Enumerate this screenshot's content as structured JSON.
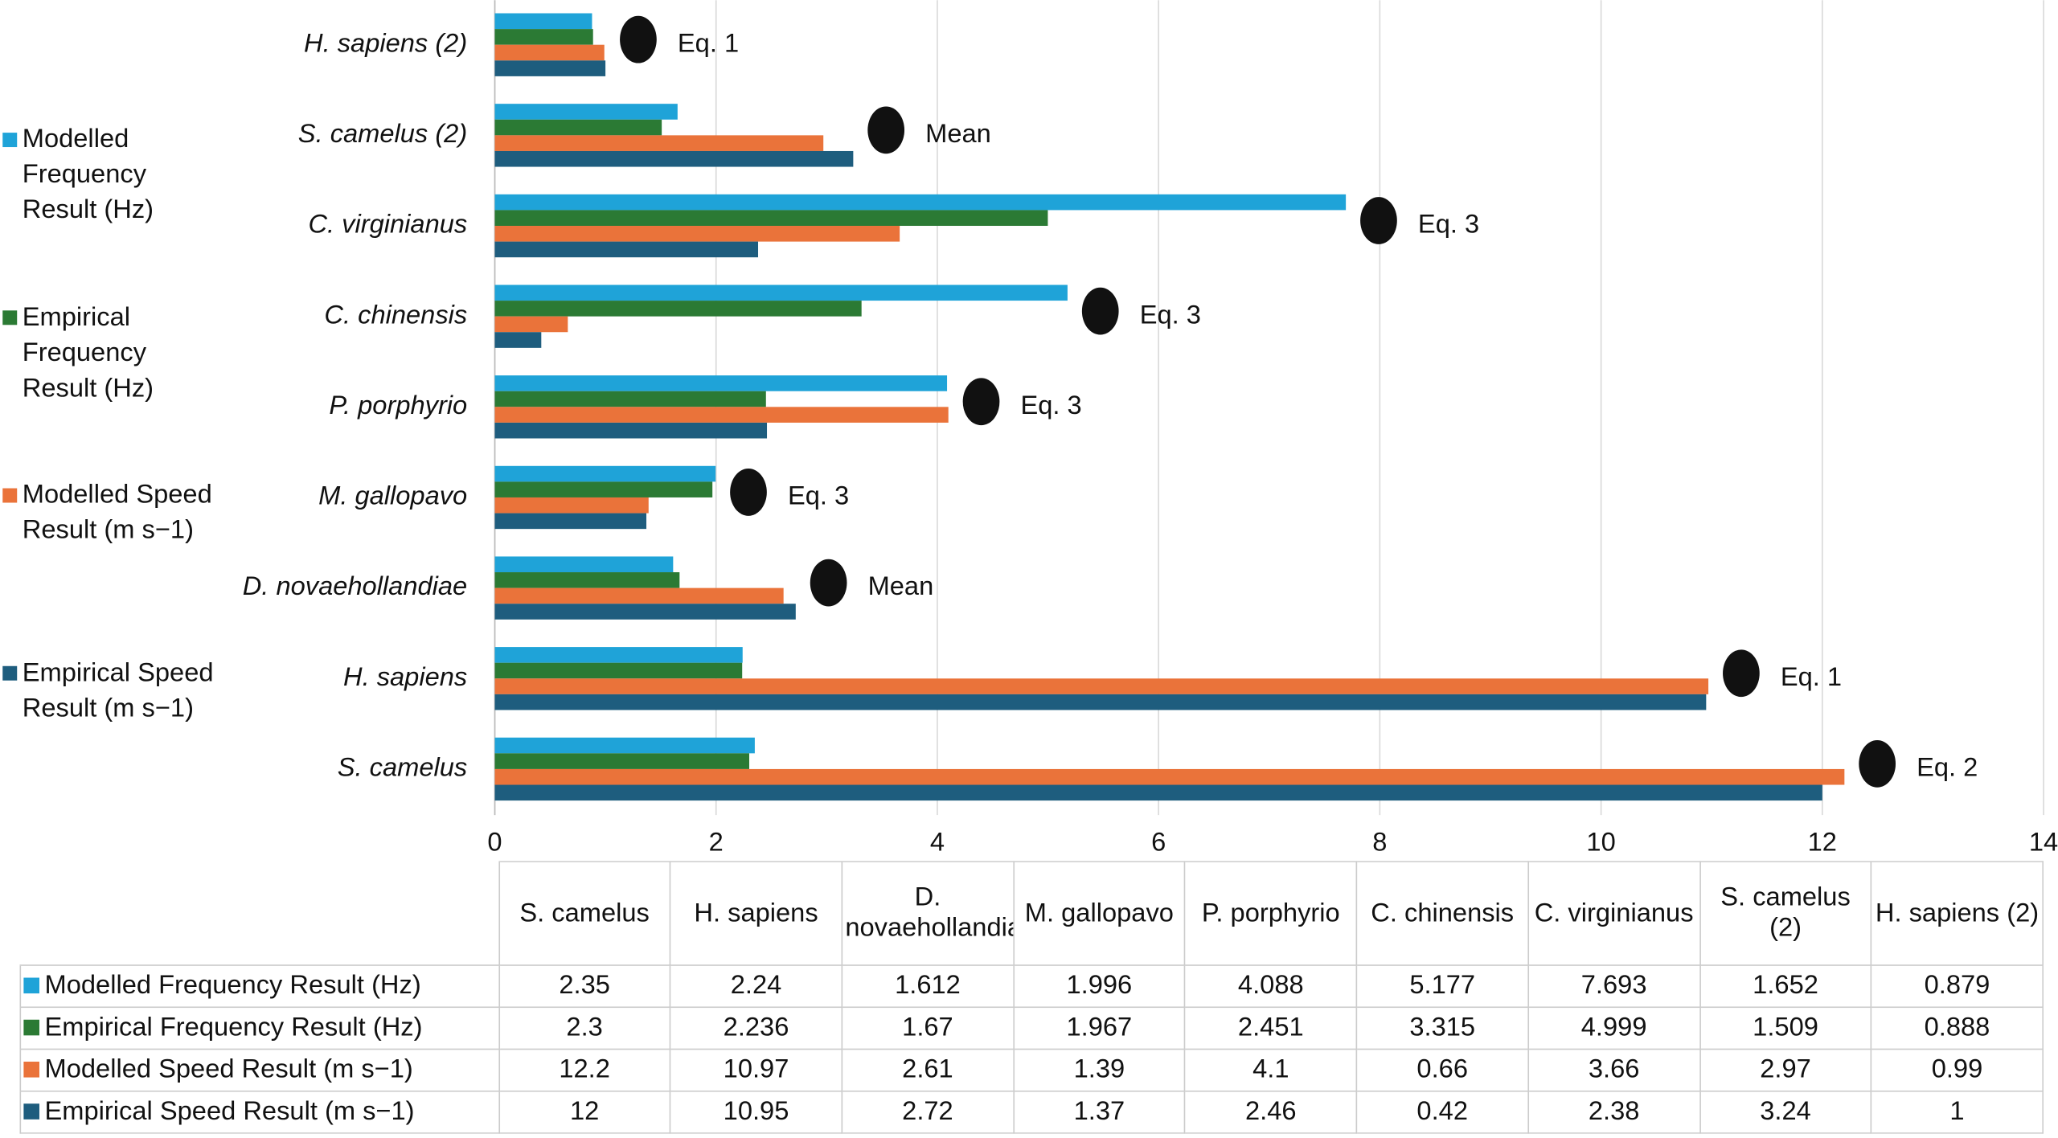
{
  "chart_data": {
    "type": "bar",
    "orientation": "horizontal",
    "categories": [
      "S. camelus",
      "H. sapiens",
      "D. novaehollandiae",
      "M. gallopavo",
      "P. porphyrio",
      "C. chinensis",
      "C. virginianus",
      "S. camelus (2)",
      "H. sapiens (2)"
    ],
    "annotations": [
      "Eq. 2",
      "Eq. 1",
      "Mean",
      "Eq. 3",
      "Eq. 3",
      "Eq. 3",
      "Eq. 3",
      "Mean",
      "Eq. 1"
    ],
    "series": [
      {
        "name": "Modelled Frequency Result (Hz)",
        "color": "#1fa3d8",
        "values": [
          2.35,
          2.24,
          1.612,
          1.996,
          4.088,
          5.177,
          7.693,
          1.652,
          0.879
        ]
      },
      {
        "name": "Empirical Frequency Result (Hz)",
        "color": "#2b7a34",
        "values": [
          2.3,
          2.236,
          1.67,
          1.967,
          2.451,
          3.315,
          4.999,
          1.509,
          0.888
        ]
      },
      {
        "name": "Modelled Speed Result (m s−1)",
        "color": "#ea733a",
        "values": [
          12.2,
          10.97,
          2.61,
          1.39,
          4.1,
          0.66,
          3.66,
          2.97,
          0.99
        ]
      },
      {
        "name": "Empirical Speed Result (m s−1)",
        "color": "#1e5d7e",
        "values": [
          12,
          10.95,
          2.72,
          1.37,
          2.46,
          0.42,
          2.38,
          3.24,
          1
        ]
      }
    ],
    "xlim": [
      0,
      14
    ],
    "xticks": [
      0,
      2,
      4,
      6,
      8,
      10,
      12,
      14
    ],
    "grid": true
  }
}
